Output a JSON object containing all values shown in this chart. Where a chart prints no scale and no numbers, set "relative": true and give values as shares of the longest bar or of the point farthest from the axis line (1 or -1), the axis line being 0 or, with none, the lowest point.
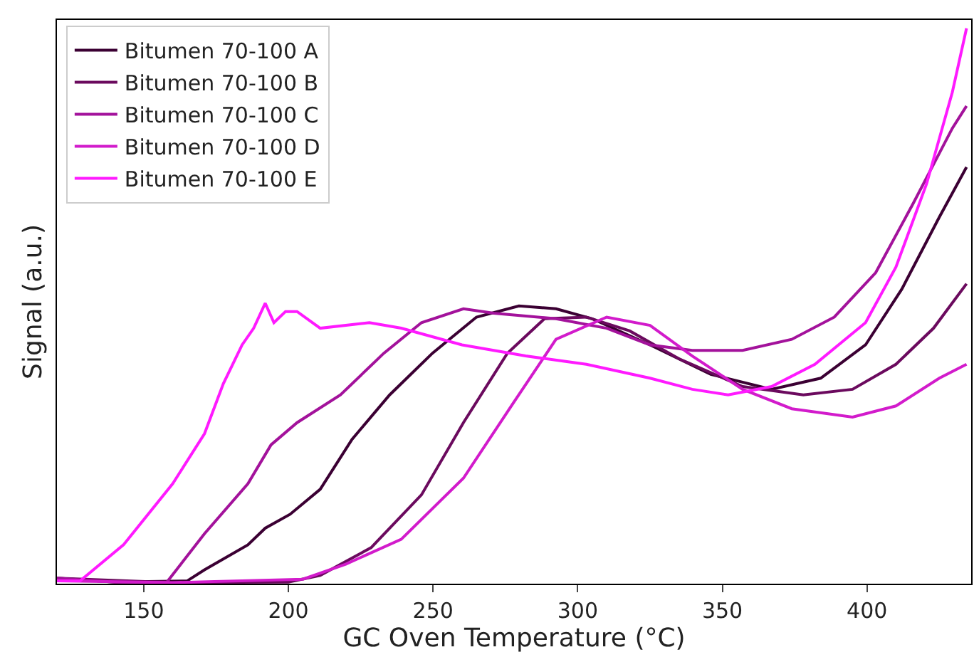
{
  "chart_data": {
    "type": "line",
    "xlabel": "GC Oven Temperature (°C)",
    "ylabel": "Signal (a.u.)",
    "relative": true,
    "xlim": [
      120,
      436
    ],
    "xticks": [
      150,
      200,
      250,
      300,
      350,
      400
    ],
    "tick_labels": "x",
    "legend": "top left",
    "marker": "none",
    "line_style": "solid",
    "series": [
      {
        "name": "Bitumen 70-100 A",
        "color": "#3b0033",
        "x": [
          120,
          140,
          165,
          171,
          186,
          192,
          200.6,
          211,
          222,
          235,
          249.8,
          265,
          279.7,
          292.5,
          305,
          325,
          346,
          367,
          384,
          399.5,
          412,
          425,
          434.4
        ],
        "values": [
          0.01,
          0.003,
          0.005,
          0.025,
          0.07,
          0.1,
          0.125,
          0.17,
          0.26,
          0.34,
          0.415,
          0.48,
          0.5,
          0.495,
          0.477,
          0.43,
          0.377,
          0.35,
          0.37,
          0.43,
          0.53,
          0.66,
          0.75
        ]
      },
      {
        "name": "Bitumen 70-100 B",
        "color": "#6b0a5e",
        "x": [
          120,
          160,
          200,
          211,
          228.6,
          246,
          260.5,
          275.7,
          288.5,
          303,
          318,
          335,
          357,
          378,
          395,
          410,
          423,
          434.4
        ],
        "values": [
          0.01,
          0.002,
          0.003,
          0.015,
          0.065,
          0.16,
          0.29,
          0.415,
          0.477,
          0.48,
          0.455,
          0.405,
          0.355,
          0.34,
          0.35,
          0.395,
          0.46,
          0.54
        ]
      },
      {
        "name": "Bitumen 70-100 C",
        "color": "#a3129b",
        "x": [
          120,
          140,
          158,
          171,
          186,
          194,
          203,
          218,
          233,
          246,
          260.5,
          271,
          292.5,
          310,
          325,
          339.6,
          357,
          374,
          388.7,
          403,
          416,
          429.5,
          434.4
        ],
        "values": [
          0.01,
          0.003,
          0.003,
          0.09,
          0.18,
          0.25,
          0.29,
          0.34,
          0.415,
          0.47,
          0.495,
          0.487,
          0.477,
          0.46,
          0.43,
          0.42,
          0.42,
          0.44,
          0.48,
          0.56,
          0.685,
          0.82,
          0.86
        ]
      },
      {
        "name": "Bitumen 70-100 D",
        "color": "#d21bcb",
        "x": [
          120,
          160,
          205,
          219.8,
          239,
          260.5,
          277.7,
          292.5,
          310,
          325,
          339.6,
          357,
          374,
          395,
          410,
          425,
          434.4
        ],
        "values": [
          0.005,
          0.002,
          0.008,
          0.035,
          0.08,
          0.19,
          0.325,
          0.44,
          0.48,
          0.465,
          0.41,
          0.35,
          0.315,
          0.3,
          0.32,
          0.37,
          0.395
        ]
      },
      {
        "name": "Bitumen 70-100 E",
        "color": "#ff1aff",
        "x": [
          120,
          128,
          143,
          160,
          171,
          177.5,
          184,
          188,
          192,
          195,
          199,
          203,
          211,
          228,
          239,
          260,
          282,
          303,
          325,
          339.6,
          352,
          367,
          382,
          399.5,
          410,
          420.6,
          429.5,
          434.4
        ],
        "values": [
          0.005,
          0.005,
          0.07,
          0.18,
          0.27,
          0.36,
          0.43,
          0.46,
          0.505,
          0.47,
          0.49,
          0.49,
          0.46,
          0.47,
          0.46,
          0.43,
          0.41,
          0.395,
          0.37,
          0.35,
          0.34,
          0.355,
          0.395,
          0.47,
          0.57,
          0.72,
          0.885,
          1.0
        ]
      }
    ]
  }
}
